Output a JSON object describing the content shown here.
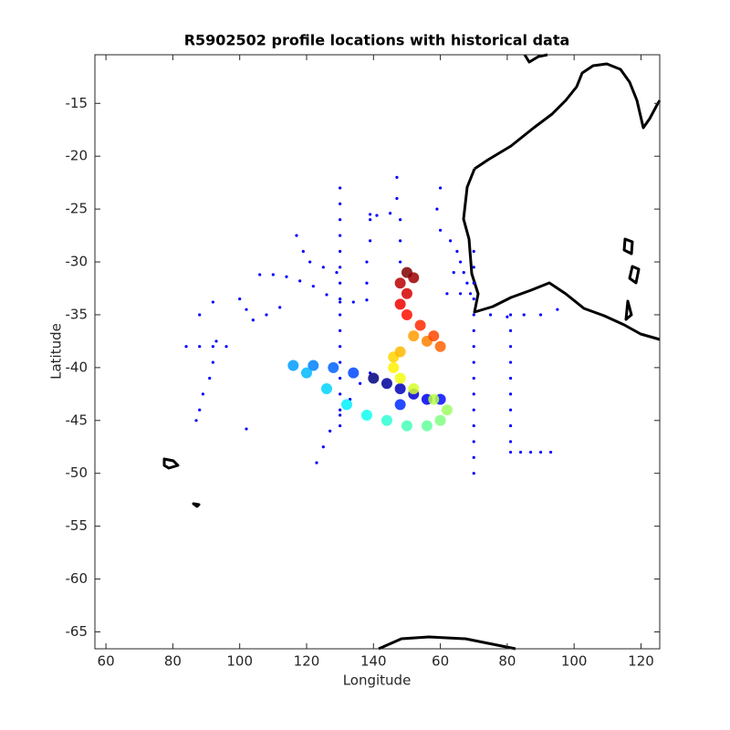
{
  "chart_data": {
    "type": "scatter",
    "title": "R5902502 profile locations with historical data",
    "xlabel": "Longitude",
    "ylabel": "Latitude",
    "xlim": [
      56.7,
      225.6
    ],
    "ylim": [
      -66.6,
      -10.4
    ],
    "xticks": [
      60,
      80,
      100,
      120,
      140,
      {
        "value": 160,
        "label": "60"
      },
      {
        "value": 180,
        "label": "80"
      },
      {
        "value": 200,
        "label": "100"
      },
      {
        "value": 220,
        "label": "120"
      }
    ],
    "yticks": [
      -65,
      -60,
      -55,
      -50,
      -45,
      -40,
      -35,
      -30,
      -25,
      -20,
      -15
    ],
    "series": [
      {
        "color": "#0000ff",
        "x": [
          130,
          130,
          130,
          130,
          130,
          130,
          130,
          130,
          130,
          130,
          130,
          130,
          130,
          130,
          130,
          130,
          170,
          170,
          170,
          170,
          170,
          170,
          170,
          170,
          170,
          170,
          170,
          170,
          170,
          170,
          170,
          181,
          181,
          181,
          181,
          181,
          181,
          181,
          181,
          181,
          181,
          184,
          187,
          190,
          193,
          106,
          110,
          114,
          118,
          122,
          126,
          130,
          134,
          138,
          100,
          102,
          104,
          108,
          112,
          117,
          119,
          121,
          125,
          129,
          123,
          125,
          127,
          130,
          133,
          136,
          139,
          84,
          88,
          92,
          96,
          93,
          92,
          91,
          89,
          88,
          87,
          147,
          147,
          148,
          148,
          148,
          139,
          139,
          138,
          138,
          139,
          141,
          145,
          163,
          165,
          166,
          167,
          168,
          164,
          166,
          169,
          162,
          175,
          180,
          185,
          190,
          195,
          92,
          102,
          88,
          160,
          159,
          160
        ],
        "y": [
          -23,
          -24.5,
          -26,
          -27.5,
          -29,
          -30.5,
          -32,
          -33.5,
          -35,
          -36.5,
          -38,
          -39.5,
          -41,
          -42.5,
          -44,
          -45.5,
          -29,
          -30.5,
          -32,
          -33.5,
          -35,
          -36.5,
          -38,
          -39.5,
          -41,
          -42.5,
          -44,
          -45.5,
          -47,
          -48.5,
          -50,
          -35,
          -36.5,
          -38,
          -39.5,
          -41,
          -42.5,
          -44,
          -45.5,
          -47,
          -48,
          -48,
          -48,
          -48,
          -48,
          -31.2,
          -31.2,
          -31.4,
          -31.8,
          -32.3,
          -33.1,
          -33.8,
          -33.8,
          -33.6,
          -33.5,
          -34.5,
          -35.5,
          -35,
          -34.3,
          -27.5,
          -29,
          -30,
          -30.5,
          -31,
          -49,
          -47.5,
          -46,
          -44.5,
          -43,
          -41.5,
          -40.5,
          -38,
          -38,
          -38,
          -38,
          -37.5,
          -39.5,
          -41,
          -42.5,
          -44,
          -45,
          -22,
          -24,
          -26,
          -28,
          -30,
          -26,
          -28,
          -30,
          -32,
          -25.5,
          -25.6,
          -25.4,
          -28,
          -29,
          -30,
          -31,
          -32,
          -31,
          -33,
          -33,
          -33,
          -35,
          -35.2,
          -35,
          -35,
          -34.5,
          -33.8,
          -45.8,
          -35,
          -23,
          -25,
          -27
        ]
      },
      {
        "colormap": "jet",
        "x": [
          140,
          144,
          148,
          152,
          156,
          160,
          148,
          134,
          128,
          122,
          116,
          120,
          126,
          132,
          138,
          144,
          150,
          156,
          160,
          162,
          158,
          152,
          148,
          146,
          146,
          148,
          152,
          156,
          160,
          158,
          154,
          150,
          148,
          150,
          148,
          152,
          150
        ],
        "y": [
          -41,
          -41.5,
          -42,
          -42.5,
          -43,
          -43,
          -43.5,
          -40.5,
          -40,
          -39.8,
          -39.8,
          -40.5,
          -42,
          -43.5,
          -44.5,
          -45,
          -45.5,
          -45.5,
          -45,
          -44,
          -43,
          -42,
          -41,
          -40,
          -39,
          -38.5,
          -37,
          -37.5,
          -38,
          -37,
          -36,
          -35,
          -34,
          -33,
          -32,
          -31.5,
          -31
        ]
      }
    ]
  }
}
